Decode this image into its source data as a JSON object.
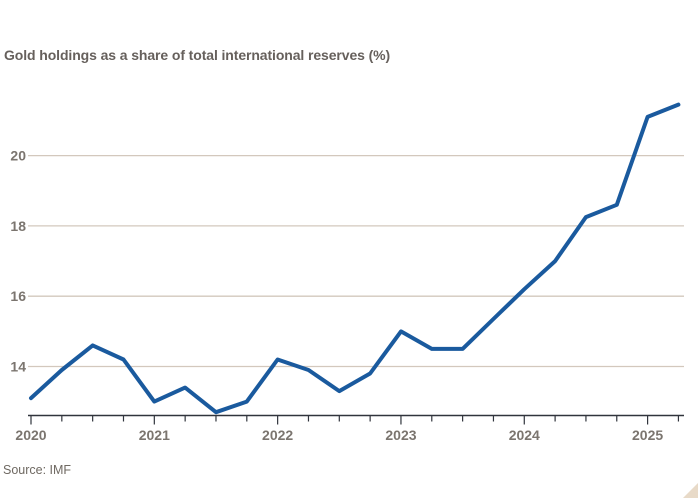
{
  "title": "Gold holdings as a share of total international reserves (%)",
  "source": "Source: IMF",
  "colors": {
    "background": "#ffffff",
    "line": "#1a5a9e",
    "grid": "#d3c8bd",
    "axis": "#30343c",
    "tick_text": "#7b756f",
    "title_text": "#66605c",
    "source_text": "#6f6962",
    "expand_triangle": "#e8dac8"
  },
  "expand_icon": "corner-expand-triangle",
  "chart_data": {
    "type": "line",
    "title": "Gold holdings as a share of total international reserves (%)",
    "x": [
      "2020 Q1",
      "2020 Q2",
      "2020 Q3",
      "2020 Q4",
      "2021 Q1",
      "2021 Q2",
      "2021 Q3",
      "2021 Q4",
      "2022 Q1",
      "2022 Q2",
      "2022 Q3",
      "2022 Q4",
      "2023 Q1",
      "2023 Q2",
      "2023 Q3",
      "2023 Q4",
      "2024 Q1",
      "2024 Q2",
      "2024 Q3",
      "2024 Q4",
      "2025 Q1",
      "2025 Q2"
    ],
    "series": [
      {
        "name": "Gold holdings as a share of total international reserves (%)",
        "values": [
          13.1,
          13.9,
          14.6,
          14.2,
          13.0,
          13.4,
          12.7,
          13.0,
          14.2,
          13.9,
          13.3,
          13.8,
          15.0,
          14.5,
          14.5,
          15.35,
          16.2,
          17.0,
          18.25,
          18.6,
          21.1,
          21.45
        ]
      }
    ],
    "x_tick_labels": [
      "2020",
      "2021",
      "2022",
      "2023",
      "2024",
      "2025"
    ],
    "y_ticks": [
      14,
      16,
      18,
      20
    ],
    "ylim": [
      12.4,
      21.9
    ],
    "grid": "horizontal",
    "legend": "none",
    "line_color": "#1a5a9e",
    "xlabel": "",
    "ylabel": ""
  }
}
